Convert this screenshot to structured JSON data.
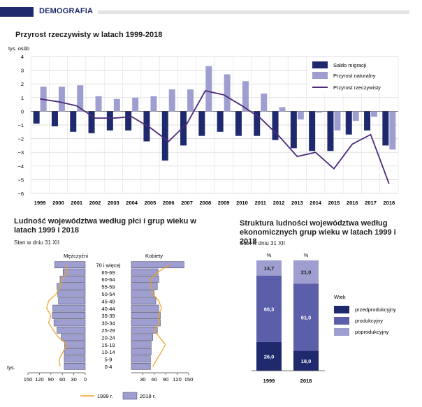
{
  "header": {
    "section": "DEMOGRAFIA"
  },
  "chart_data": [
    {
      "type": "bar",
      "title": "Przyrost rzeczywisty w latach 1999-2018",
      "ylabel": "tys. osób",
      "ylim": [
        -6,
        4
      ],
      "yticks": [
        4,
        3,
        2,
        1,
        0,
        -1,
        -2,
        -3,
        -4,
        -5,
        -6
      ],
      "grid": true,
      "legend_position": "top-right",
      "categories": [
        "1999",
        "2000",
        "2001",
        "2002",
        "2003",
        "2004",
        "2005",
        "2006",
        "2007",
        "2008",
        "2009",
        "2010",
        "2011",
        "2012",
        "2013",
        "2014",
        "2015",
        "2016",
        "2017",
        "2018"
      ],
      "series": [
        {
          "name": "Saldo migracji",
          "type": "bar",
          "color": "#1f2a6e",
          "values": [
            -0.9,
            -1.1,
            -1.5,
            -1.6,
            -1.4,
            -1.4,
            -2.2,
            -3.6,
            -2.5,
            -1.8,
            -1.5,
            -1.8,
            -1.8,
            -2.1,
            -2.7,
            -2.9,
            -2.9,
            -1.7,
            -1.4,
            -2.5
          ]
        },
        {
          "name": "Przyrost naturalny",
          "type": "bar",
          "color": "#9e9fd0",
          "values": [
            1.8,
            1.8,
            1.9,
            1.1,
            0.9,
            1.0,
            1.1,
            1.6,
            1.6,
            3.3,
            2.7,
            2.2,
            1.3,
            0.3,
            -0.6,
            -0.1,
            -1.4,
            -0.7,
            -0.4,
            -2.8
          ]
        },
        {
          "name": "Przyrost rzeczywisty",
          "type": "line",
          "color": "#4b2a7b",
          "values": [
            0.9,
            0.7,
            0.4,
            -0.5,
            -0.5,
            -0.4,
            -1.2,
            -2.2,
            -0.9,
            1.5,
            1.2,
            0.4,
            -0.5,
            -1.8,
            -3.3,
            -3.0,
            -4.2,
            -2.4,
            -1.7,
            -5.3
          ]
        }
      ]
    },
    {
      "type": "bar",
      "title": "Ludność województwa według płci i grup wieku w latach 1999 i 2018",
      "subtitle": "Stan w dniu 31 XII",
      "xlabel": "tys.",
      "left_label": "Mężczyźni",
      "right_label": "Kobiety",
      "xticks": [
        150,
        120,
        90,
        60,
        30,
        0,
        30,
        60,
        90,
        120,
        150
      ],
      "categories": [
        "70 i więcej",
        "65-69",
        "60-64",
        "55-59",
        "50-54",
        "45-49",
        "40-44",
        "35-39",
        "30-34",
        "25-29",
        "20-24",
        "15-19",
        "10-14",
        "5-9",
        "0-4"
      ],
      "series": [
        {
          "name": "2018 r.",
          "type": "bar",
          "color": "#9e9fd0",
          "men": [
            80,
            58,
            66,
            74,
            72,
            70,
            85,
            86,
            82,
            74,
            63,
            54,
            55,
            55,
            55
          ],
          "women": [
            138,
            70,
            72,
            68,
            60,
            64,
            72,
            76,
            76,
            68,
            56,
            52,
            52,
            50,
            50
          ]
        },
        {
          "name": "1999 r.",
          "type": "line",
          "color": "#f0a020",
          "men": [
            52,
            45,
            62,
            66,
            76,
            96,
            101,
            90,
            96,
            84,
            70,
            48,
            58,
            68,
            66
          ],
          "women": [
            100,
            70,
            48,
            52,
            56,
            72,
            79,
            70,
            72,
            59,
            74,
            89,
            79,
            67,
            56
          ]
        }
      ]
    },
    {
      "type": "bar",
      "title": "Struktura ludności województwa według ekonomicznych grup wieku w latach 1999 i 2018",
      "subtitle": "Stan w dniu 31 XII",
      "unit": "%",
      "legend_title": "Wiek",
      "categories": [
        "1999",
        "2018"
      ],
      "series": [
        {
          "name": "przedprodukcyjny",
          "color": "#1f2a6e",
          "values": [
            26.0,
            18.0
          ],
          "labels": [
            "26,0",
            "18,0"
          ]
        },
        {
          "name": "produkcyjny",
          "color": "#5b5ea8",
          "values": [
            60.3,
            61.0
          ],
          "labels": [
            "60,3",
            "61,0"
          ]
        },
        {
          "name": "poprodukcyjny",
          "color": "#9e9fd0",
          "values": [
            13.7,
            21.0
          ],
          "labels": [
            "13,7",
            "21,0"
          ]
        }
      ]
    }
  ]
}
